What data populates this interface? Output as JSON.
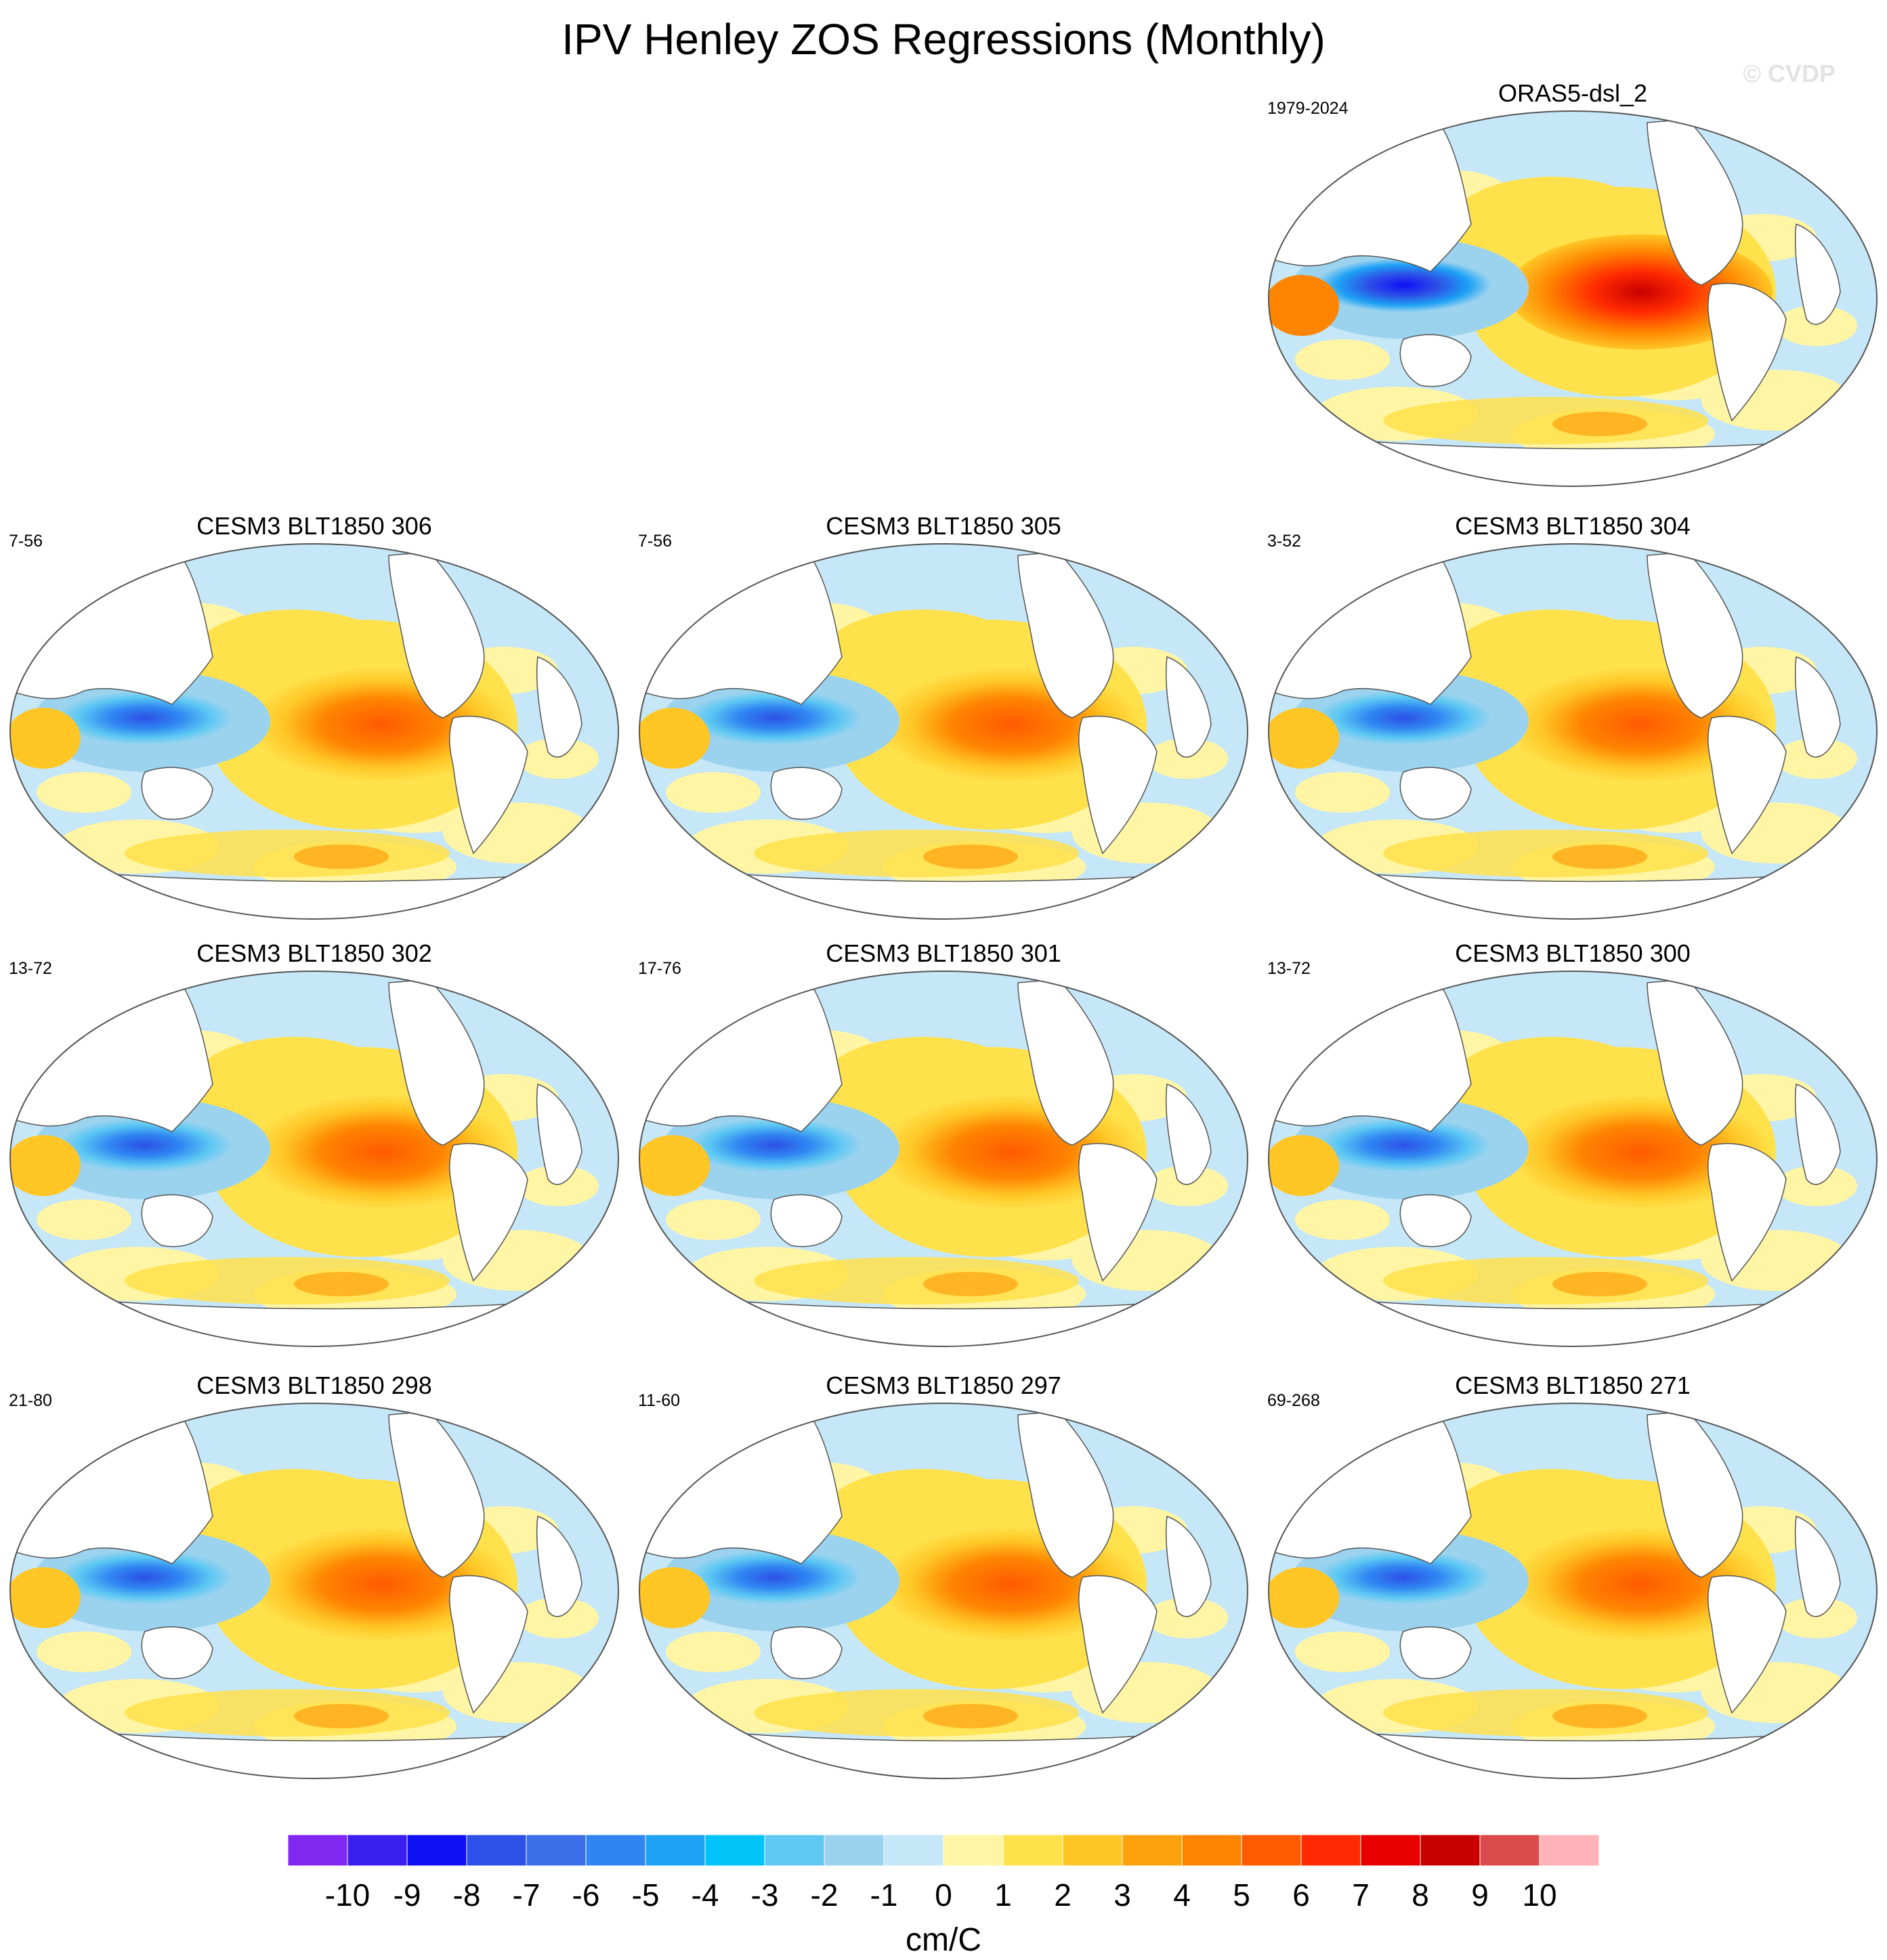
{
  "title": "IPV Henley ZOS Regressions (Monthly)",
  "watermark": "© CVDP",
  "panels": [
    {
      "title": "ORAS5-dsl_2",
      "period": "1979-2024"
    },
    {
      "title": "CESM3 BLT1850 306",
      "period": "7-56"
    },
    {
      "title": "CESM3 BLT1850 305",
      "period": "7-56"
    },
    {
      "title": "CESM3 BLT1850 304",
      "period": "3-52"
    },
    {
      "title": "CESM3 BLT1850 302",
      "period": "13-72"
    },
    {
      "title": "CESM3 BLT1850 301",
      "period": "17-76"
    },
    {
      "title": "CESM3 BLT1850 300",
      "period": "13-72"
    },
    {
      "title": "CESM3 BLT1850 298",
      "period": "21-80"
    },
    {
      "title": "CESM3 BLT1850 297",
      "period": "11-60"
    },
    {
      "title": "CESM3 BLT1850 271",
      "period": "69-268"
    }
  ],
  "colorbar": {
    "units": "cm/C",
    "labels": [
      "-10",
      "-9",
      "-8",
      "-7",
      "-6",
      "-5",
      "-4",
      "-3",
      "-2",
      "-1",
      "0",
      "1",
      "2",
      "3",
      "4",
      "5",
      "6",
      "7",
      "8",
      "9",
      "10"
    ],
    "colors": [
      "#8128f0",
      "#3b1ef0",
      "#1010f5",
      "#2d50e6",
      "#3c6ee8",
      "#2f86f2",
      "#1ea2f5",
      "#00c4f8",
      "#5cc8f3",
      "#9bd3ef",
      "#c6e7f7",
      "#fff5a4",
      "#ffe14b",
      "#ffc625",
      "#ffa10d",
      "#ff8400",
      "#ff5a00",
      "#ff2a00",
      "#e80000",
      "#c80000",
      "#dc4b4b",
      "#ffb3b8"
    ]
  }
}
